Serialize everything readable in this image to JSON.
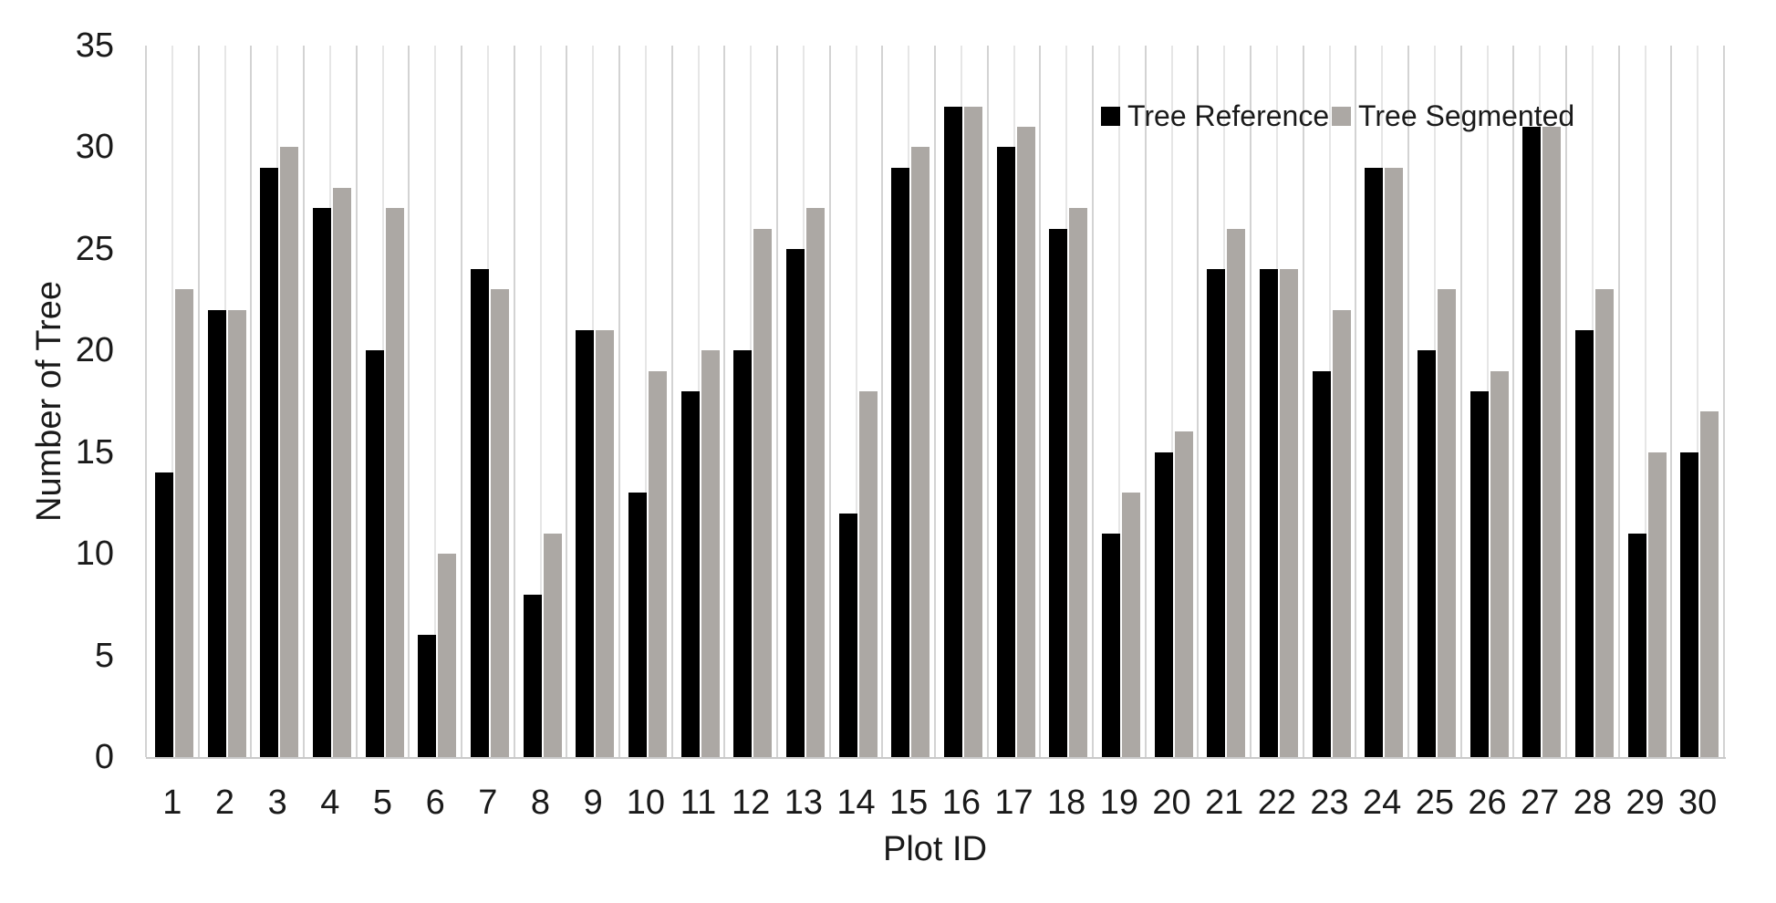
{
  "figure": {
    "background": "#ffffff"
  },
  "chart_data": {
    "type": "bar",
    "title": "",
    "xlabel": "Plot ID",
    "ylabel": "Number of Tree",
    "categories": [
      "1",
      "2",
      "3",
      "4",
      "5",
      "6",
      "7",
      "8",
      "9",
      "10",
      "11",
      "12",
      "13",
      "14",
      "15",
      "16",
      "17",
      "18",
      "19",
      "20",
      "21",
      "22",
      "23",
      "24",
      "25",
      "26",
      "27",
      "28",
      "29",
      "30"
    ],
    "series": [
      {
        "name": "Tree Reference",
        "color": "#000000",
        "values": [
          14,
          22,
          29,
          27,
          20,
          6,
          24,
          8,
          21,
          13,
          18,
          20,
          25,
          12,
          29,
          32,
          30,
          26,
          11,
          15,
          24,
          24,
          19,
          29,
          20,
          18,
          31,
          21,
          11,
          15
        ]
      },
      {
        "name": "Tree Segmented",
        "color": "#aca8a4",
        "values": [
          23,
          22,
          30,
          28,
          27,
          10,
          23,
          11,
          21,
          19,
          20,
          26,
          27,
          18,
          30,
          32,
          31,
          27,
          13,
          16,
          26,
          24,
          22,
          29,
          23,
          19,
          31,
          23,
          15,
          17
        ]
      }
    ],
    "ylim": [
      0,
      35
    ],
    "yticks": [
      0,
      5,
      10,
      15,
      20,
      25,
      30,
      35
    ],
    "grid": "vertical only, light gray, at category boundaries (major) and category centers (minor)",
    "legend_position": "top-right inside plot area"
  },
  "legend": {
    "items": [
      {
        "label": "Tree Reference",
        "color": "#000000"
      },
      {
        "label": "Tree Segmented",
        "color": "#aca8a4"
      }
    ]
  },
  "colors": {
    "reference_bar": "#000000",
    "segmented_bar": "#aca8a4",
    "gridline_major": "#d3d3d3",
    "gridline_minor": "#e6e6e6",
    "axis_line": "#c9c9c9",
    "text": "#1a1a1a",
    "background": "#ffffff"
  }
}
